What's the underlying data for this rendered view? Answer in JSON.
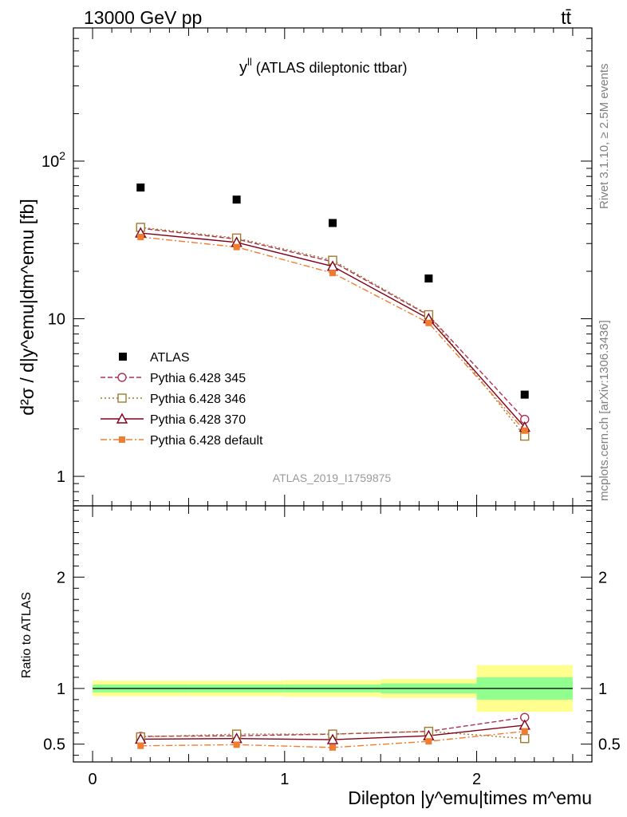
{
  "header": {
    "left": "13000 GeV pp",
    "right": "tt̄"
  },
  "side_labels": {
    "rivet": "Rivet 3.1.10, ≥ 2.5M events",
    "mcplots": "mcplots.cern.ch [arXiv:1306.3436]"
  },
  "plot_title": {
    "main": "y",
    "sup": "ll",
    "rest": " (ATLAS dileptonic ttbar)"
  },
  "watermark": "ATLAS_2019_I1759875",
  "colors": {
    "data": "#000000",
    "p345": "#b03050",
    "p346": "#a07a30",
    "p370": "#800018",
    "pdef": "#f07c30",
    "band_outer": "#ffff90",
    "band_inner": "#90ff90"
  },
  "chart_data": [
    {
      "type": "scatter",
      "panel": "main",
      "scale": "log",
      "ylabel": "d²σ / d|y^emu|dm^emu [fb]",
      "ylim": [
        0.65,
        700
      ],
      "yticks": [
        {
          "value": 1,
          "label": "1"
        },
        {
          "value": 10,
          "label": "10"
        },
        {
          "value": 100,
          "label": "10²"
        }
      ],
      "legend_placement": "lower-left",
      "x": [
        0.25,
        0.75,
        1.25,
        1.75,
        2.25
      ],
      "series": [
        {
          "name": "ATLAS",
          "key": "data",
          "values": [
            68,
            57,
            40.5,
            18,
            3.3
          ]
        },
        {
          "name": "Pythia 6.428 345",
          "key": "p345",
          "values": [
            37.5,
            32,
            23,
            10.5,
            2.3
          ]
        },
        {
          "name": "Pythia 6.428 346",
          "key": "p346",
          "values": [
            38,
            32.5,
            23.5,
            10.6,
            1.8
          ]
        },
        {
          "name": "Pythia 6.428 370",
          "key": "p370",
          "values": [
            35,
            30.5,
            21.5,
            10,
            2.05
          ]
        },
        {
          "name": "Pythia 6.428 default",
          "key": "pdef",
          "values": [
            33,
            28.5,
            19.5,
            9.4,
            1.95
          ]
        }
      ]
    },
    {
      "type": "line",
      "panel": "ratio",
      "ylabel": "Ratio to ATLAS",
      "ylim": [
        0.34,
        2.64
      ],
      "yticks": [
        {
          "value": 0.5,
          "label": "0.5"
        },
        {
          "value": 1,
          "label": "1"
        },
        {
          "value": 2,
          "label": "2"
        }
      ],
      "xlabel": "Dilepton |y^emu|times m^emu",
      "xlim": [
        -0.1,
        2.6
      ],
      "xticks": [
        {
          "value": 0,
          "label": "0"
        },
        {
          "value": 1,
          "label": "1"
        },
        {
          "value": 2,
          "label": "2"
        }
      ],
      "bins": [
        [
          0,
          0.5
        ],
        [
          0.5,
          1.0
        ],
        [
          1.0,
          1.5
        ],
        [
          1.5,
          2.0
        ],
        [
          2.0,
          2.5
        ]
      ],
      "band_inner": [
        0.035,
        0.035,
        0.035,
        0.045,
        0.1
      ],
      "band_outer": [
        0.07,
        0.07,
        0.075,
        0.085,
        0.21
      ],
      "x": [
        0.25,
        0.75,
        1.25,
        1.75,
        2.25
      ],
      "series": [
        {
          "name": "Pythia 6.428 345",
          "key": "p345",
          "values": [
            0.57,
            0.575,
            0.59,
            0.615,
            0.74
          ]
        },
        {
          "name": "Pythia 6.428 346",
          "key": "p346",
          "values": [
            0.565,
            0.59,
            0.59,
            0.615,
            0.55
          ]
        },
        {
          "name": "Pythia 6.428 370",
          "key": "p370",
          "values": [
            0.545,
            0.55,
            0.54,
            0.575,
            0.67
          ]
        },
        {
          "name": "Pythia 6.428 default",
          "key": "pdef",
          "values": [
            0.485,
            0.495,
            0.47,
            0.525,
            0.615
          ]
        }
      ]
    }
  ]
}
